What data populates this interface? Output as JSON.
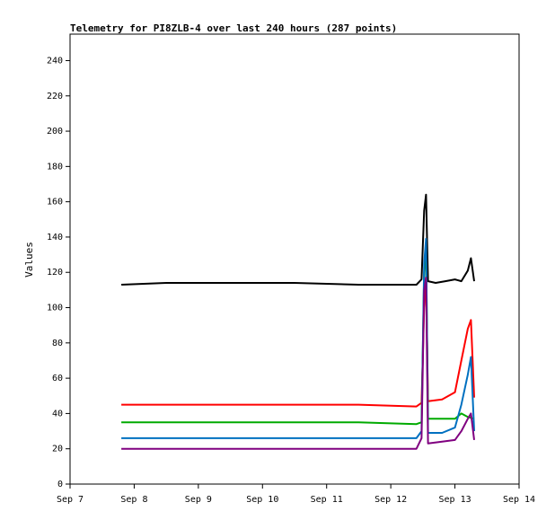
{
  "chart_data": {
    "type": "line",
    "title": "Telemetry for PI8ZLB-4 over last 240 hours (287 points)",
    "xlabel": "",
    "ylabel": "Values",
    "xlim": [
      "Sep 7",
      "Sep 14"
    ],
    "ylim": [
      0,
      255
    ],
    "x_ticks": [
      "Sep 7",
      "Sep 8",
      "Sep 9",
      "Sep 10",
      "Sep 11",
      "Sep 12",
      "Sep 13",
      "Sep 14"
    ],
    "y_ticks": [
      0,
      20,
      40,
      60,
      80,
      100,
      120,
      140,
      160,
      180,
      200,
      220,
      240
    ],
    "grid": false,
    "legend": "none",
    "series": [
      {
        "color": "#000000",
        "points": [
          [
            "Sep 7.8",
            113
          ],
          [
            "Sep 8.5",
            114
          ],
          [
            "Sep 9.5",
            114
          ],
          [
            "Sep 10.5",
            114
          ],
          [
            "Sep 11.5",
            113
          ],
          [
            "Sep 12.4",
            113
          ],
          [
            "Sep 12.48",
            116
          ],
          [
            "Sep 12.52",
            155
          ],
          [
            "Sep 12.55",
            164
          ],
          [
            "Sep 12.58",
            115
          ],
          [
            "Sep 12.7",
            114
          ],
          [
            "Sep 12.85",
            115
          ],
          [
            "Sep 13.0",
            116
          ],
          [
            "Sep 13.1",
            115
          ],
          [
            "Sep 13.2",
            121
          ],
          [
            "Sep 13.25",
            128
          ],
          [
            "Sep 13.3",
            115
          ]
        ]
      },
      {
        "color": "#ff0000",
        "points": [
          [
            "Sep 7.8",
            45
          ],
          [
            "Sep 8.5",
            45
          ],
          [
            "Sep 9.5",
            45
          ],
          [
            "Sep 10.5",
            45
          ],
          [
            "Sep 11.5",
            45
          ],
          [
            "Sep 12.4",
            44
          ],
          [
            "Sep 12.48",
            46
          ],
          [
            "Sep 12.52",
            100
          ],
          [
            "Sep 12.55",
            117
          ],
          [
            "Sep 12.58",
            47
          ],
          [
            "Sep 12.8",
            48
          ],
          [
            "Sep 13.0",
            52
          ],
          [
            "Sep 13.1",
            70
          ],
          [
            "Sep 13.2",
            88
          ],
          [
            "Sep 13.25",
            93
          ],
          [
            "Sep 13.3",
            49
          ]
        ]
      },
      {
        "color": "#00aa00",
        "points": [
          [
            "Sep 7.8",
            35
          ],
          [
            "Sep 8.5",
            35
          ],
          [
            "Sep 9.5",
            35
          ],
          [
            "Sep 10.5",
            35
          ],
          [
            "Sep 11.5",
            35
          ],
          [
            "Sep 12.4",
            34
          ],
          [
            "Sep 12.48",
            35
          ],
          [
            "Sep 12.52",
            120
          ],
          [
            "Sep 12.55",
            134
          ],
          [
            "Sep 12.58",
            37
          ],
          [
            "Sep 12.8",
            37
          ],
          [
            "Sep 13.0",
            37
          ],
          [
            "Sep 13.1",
            40
          ],
          [
            "Sep 13.2",
            38
          ],
          [
            "Sep 13.3",
            37
          ]
        ]
      },
      {
        "color": "#0070c0",
        "points": [
          [
            "Sep 7.8",
            26
          ],
          [
            "Sep 8.5",
            26
          ],
          [
            "Sep 9.5",
            26
          ],
          [
            "Sep 10.5",
            26
          ],
          [
            "Sep 11.5",
            26
          ],
          [
            "Sep 12.4",
            26
          ],
          [
            "Sep 12.48",
            30
          ],
          [
            "Sep 12.52",
            125
          ],
          [
            "Sep 12.55",
            139
          ],
          [
            "Sep 12.58",
            29
          ],
          [
            "Sep 12.8",
            29
          ],
          [
            "Sep 13.0",
            32
          ],
          [
            "Sep 13.1",
            45
          ],
          [
            "Sep 13.2",
            62
          ],
          [
            "Sep 13.25",
            72
          ],
          [
            "Sep 13.3",
            30
          ]
        ]
      },
      {
        "color": "#800080",
        "points": [
          [
            "Sep 7.8",
            20
          ],
          [
            "Sep 8.5",
            20
          ],
          [
            "Sep 9.5",
            20
          ],
          [
            "Sep 10.5",
            20
          ],
          [
            "Sep 11.5",
            20
          ],
          [
            "Sep 12.4",
            20
          ],
          [
            "Sep 12.48",
            26
          ],
          [
            "Sep 12.52",
            110
          ],
          [
            "Sep 12.55",
            117
          ],
          [
            "Sep 12.58",
            23
          ],
          [
            "Sep 12.8",
            24
          ],
          [
            "Sep 13.0",
            25
          ],
          [
            "Sep 13.1",
            30
          ],
          [
            "Sep 13.2",
            37
          ],
          [
            "Sep 13.25",
            40
          ],
          [
            "Sep 13.3",
            25
          ]
        ]
      }
    ]
  }
}
